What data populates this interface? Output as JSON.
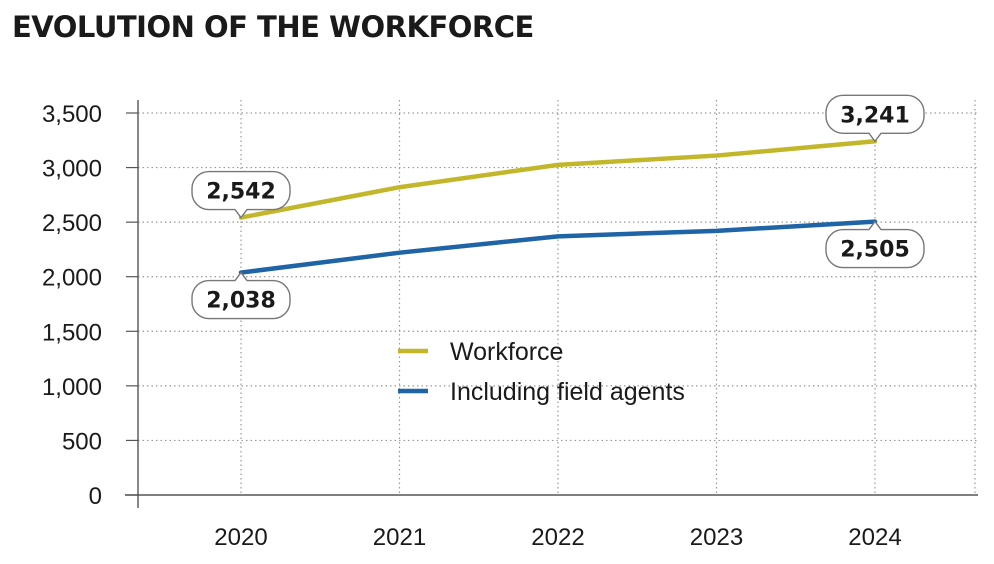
{
  "title": "EVOLUTION OF THE WORKFORCE",
  "chart_data": {
    "type": "line",
    "title": "EVOLUTION OF THE WORKFORCE",
    "x": [
      "2020",
      "2021",
      "2022",
      "2023",
      "2024"
    ],
    "ylim": [
      0,
      3500
    ],
    "yticks": [
      "0",
      "500",
      "1,000",
      "1,500",
      "2,000",
      "2,500",
      "3,000",
      "3,500"
    ],
    "grid": true,
    "legend_position": "center",
    "series": [
      {
        "name": "Workforce",
        "color": "#c2b72a",
        "values": [
          2542,
          2820,
          3025,
          3110,
          3241
        ]
      },
      {
        "name": "Including field agents",
        "color": "#1f64a6",
        "values": [
          2038,
          2220,
          2370,
          2420,
          2505
        ]
      }
    ],
    "annotations": [
      {
        "series": 0,
        "x": "2020",
        "label": "2,542",
        "placement": "above"
      },
      {
        "series": 0,
        "x": "2024",
        "label": "3,241",
        "placement": "above"
      },
      {
        "series": 1,
        "x": "2020",
        "label": "2,038",
        "placement": "below"
      },
      {
        "series": 1,
        "x": "2024",
        "label": "2,505",
        "placement": "below"
      }
    ]
  }
}
